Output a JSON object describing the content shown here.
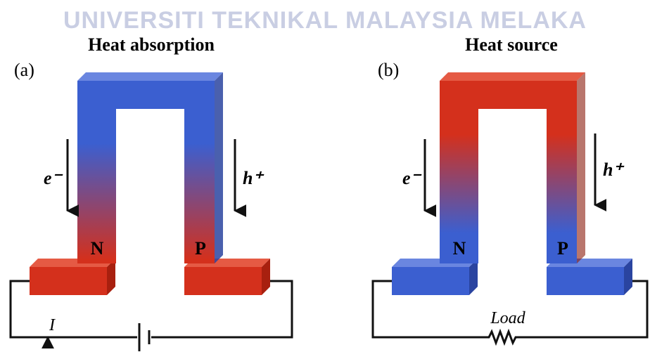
{
  "watermark": "UNIVERSITI TEKNIKAL MALAYSIA MELAKA",
  "panels": [
    {
      "label": "(a)",
      "title": "Heat absorption",
      "electron": "e⁻",
      "hole": "h⁺",
      "n_leg": "N",
      "p_leg": "P",
      "circuit_label": "I"
    },
    {
      "label": "(b)",
      "title": "Heat source",
      "electron": "e⁻",
      "hole": "h⁺",
      "n_leg": "N",
      "p_leg": "P",
      "circuit_label": "Load"
    }
  ]
}
